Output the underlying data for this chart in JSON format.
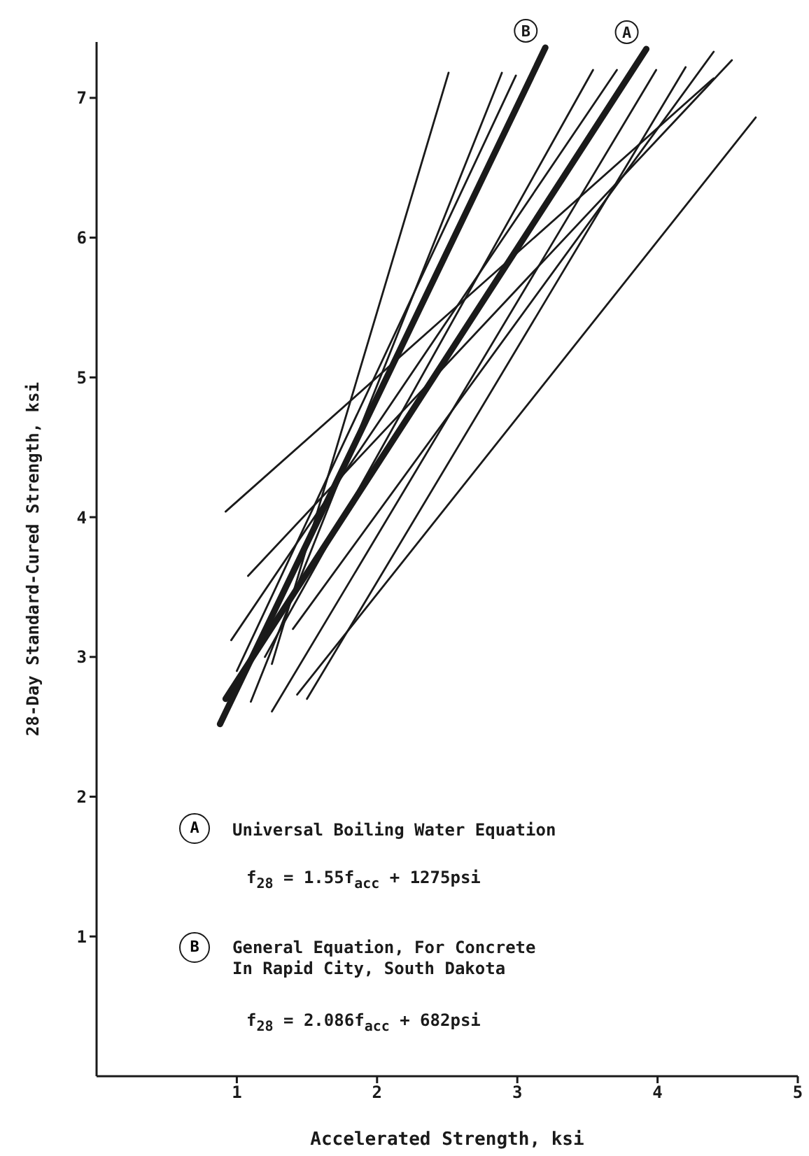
{
  "chart_data": {
    "type": "line",
    "xlabel": "Accelerated Strength, ksi",
    "ylabel": "28-Day Standard-Cured Strength, ksi",
    "xlim": [
      0,
      5
    ],
    "xticks": [
      1,
      2,
      3,
      4,
      5
    ],
    "ylim": [
      0,
      7.4
    ],
    "yticks": [
      1,
      2,
      3,
      4,
      5,
      6,
      7
    ],
    "grid": false,
    "legend": false,
    "marker": "none",
    "line_style": "solid",
    "series": [
      {
        "name": "A",
        "color": "#1a1a1a",
        "x": [
          0.92,
          3.92
        ],
        "values": [
          2.7,
          7.35
        ]
      },
      {
        "name": "B",
        "color": "#1a1a1a",
        "x": [
          0.88,
          3.2
        ],
        "values": [
          2.52,
          7.36
        ]
      },
      {
        "color": "#1a1a1a",
        "x": [
          0.92,
          4.4
        ],
        "values": [
          4.04,
          7.14
        ]
      },
      {
        "color": "#1a1a1a",
        "x": [
          1.08,
          4.53
        ],
        "values": [
          3.58,
          7.27
        ]
      },
      {
        "color": "#1a1a1a",
        "x": [
          0.96,
          3.71
        ],
        "values": [
          3.12,
          7.2
        ]
      },
      {
        "color": "#1a1a1a",
        "x": [
          1.1,
          2.89
        ],
        "values": [
          2.68,
          7.18
        ]
      },
      {
        "color": "#1a1a1a",
        "x": [
          1.25,
          3.99
        ],
        "values": [
          2.61,
          7.2
        ]
      },
      {
        "color": "#1a1a1a",
        "x": [
          1.43,
          4.7
        ],
        "values": [
          2.73,
          6.86
        ]
      },
      {
        "color": "#1a1a1a",
        "x": [
          1.25,
          2.51
        ],
        "values": [
          2.95,
          7.18
        ]
      },
      {
        "color": "#1a1a1a",
        "x": [
          1.5,
          4.2
        ],
        "values": [
          2.7,
          7.22
        ]
      },
      {
        "color": "#1a1a1a",
        "x": [
          1.2,
          3.54
        ],
        "values": [
          3.0,
          7.2
        ]
      },
      {
        "color": "#1a1a1a",
        "x": [
          1.4,
          4.4
        ],
        "values": [
          3.2,
          7.33
        ]
      },
      {
        "color": "#1a1a1a",
        "x": [
          1.0,
          2.99
        ],
        "values": [
          2.9,
          7.16
        ]
      }
    ],
    "annotations": [
      "A",
      "Universal Boiling Water Equation",
      "f$_{28}$ = 1.55f$_{acc}$ + 1275psi",
      "B",
      "General Equation, For Concrete\nIn Rapid City, South Dakota",
      "f$_{28}$ = 2.086f$_{acc}$ + 682psi"
    ]
  }
}
